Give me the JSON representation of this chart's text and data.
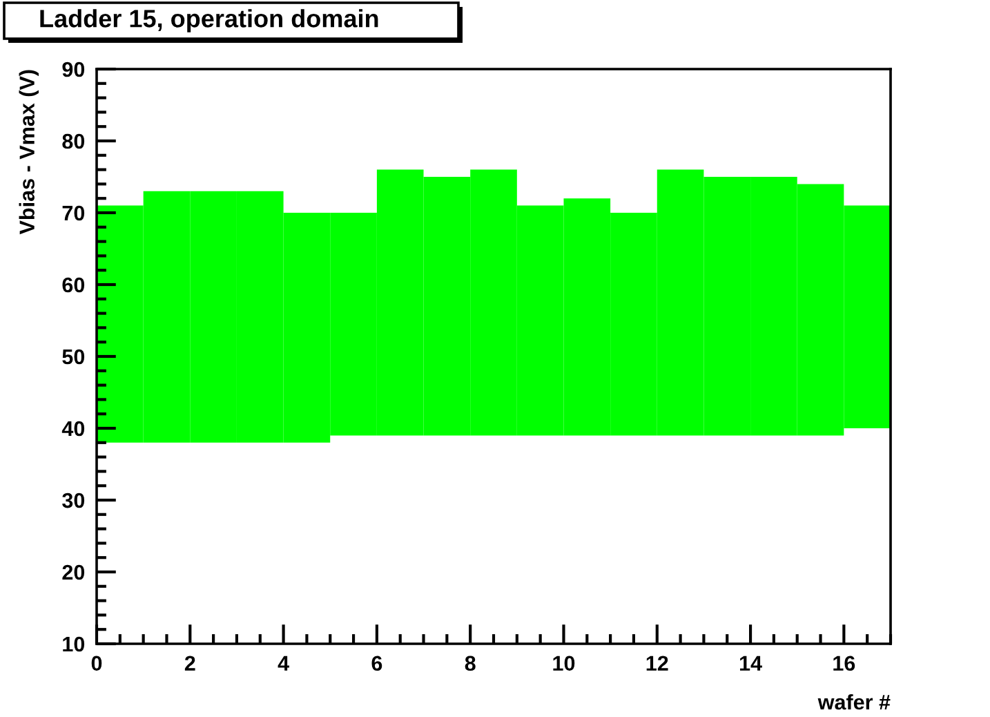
{
  "chart_data": {
    "type": "bar",
    "title": "Ladder 15, operation domain",
    "xlabel": "wafer #",
    "ylabel": "Vbias - Vmax (V)",
    "x": [
      0.5,
      1.5,
      2.5,
      3.5,
      4.5,
      5.5,
      6.5,
      7.5,
      8.5,
      9.5,
      10.5,
      11.5,
      12.5,
      13.5,
      14.5,
      15.5,
      16.5
    ],
    "base": [
      38,
      38,
      38,
      38,
      38,
      39,
      39,
      39,
      39,
      39,
      39,
      39,
      39,
      39,
      39,
      39,
      40
    ],
    "values": [
      33,
      35,
      35,
      35,
      32,
      31,
      37,
      36,
      37,
      32,
      33,
      31,
      37,
      36,
      36,
      35,
      31
    ],
    "color": "#00ff00",
    "xlim": [
      0,
      17
    ],
    "xticks": [
      0,
      2,
      4,
      6,
      8,
      10,
      12,
      14,
      16
    ],
    "ylim": [
      10,
      90
    ],
    "yticks": [
      10,
      20,
      30,
      40,
      50,
      60,
      70,
      80,
      90
    ]
  }
}
